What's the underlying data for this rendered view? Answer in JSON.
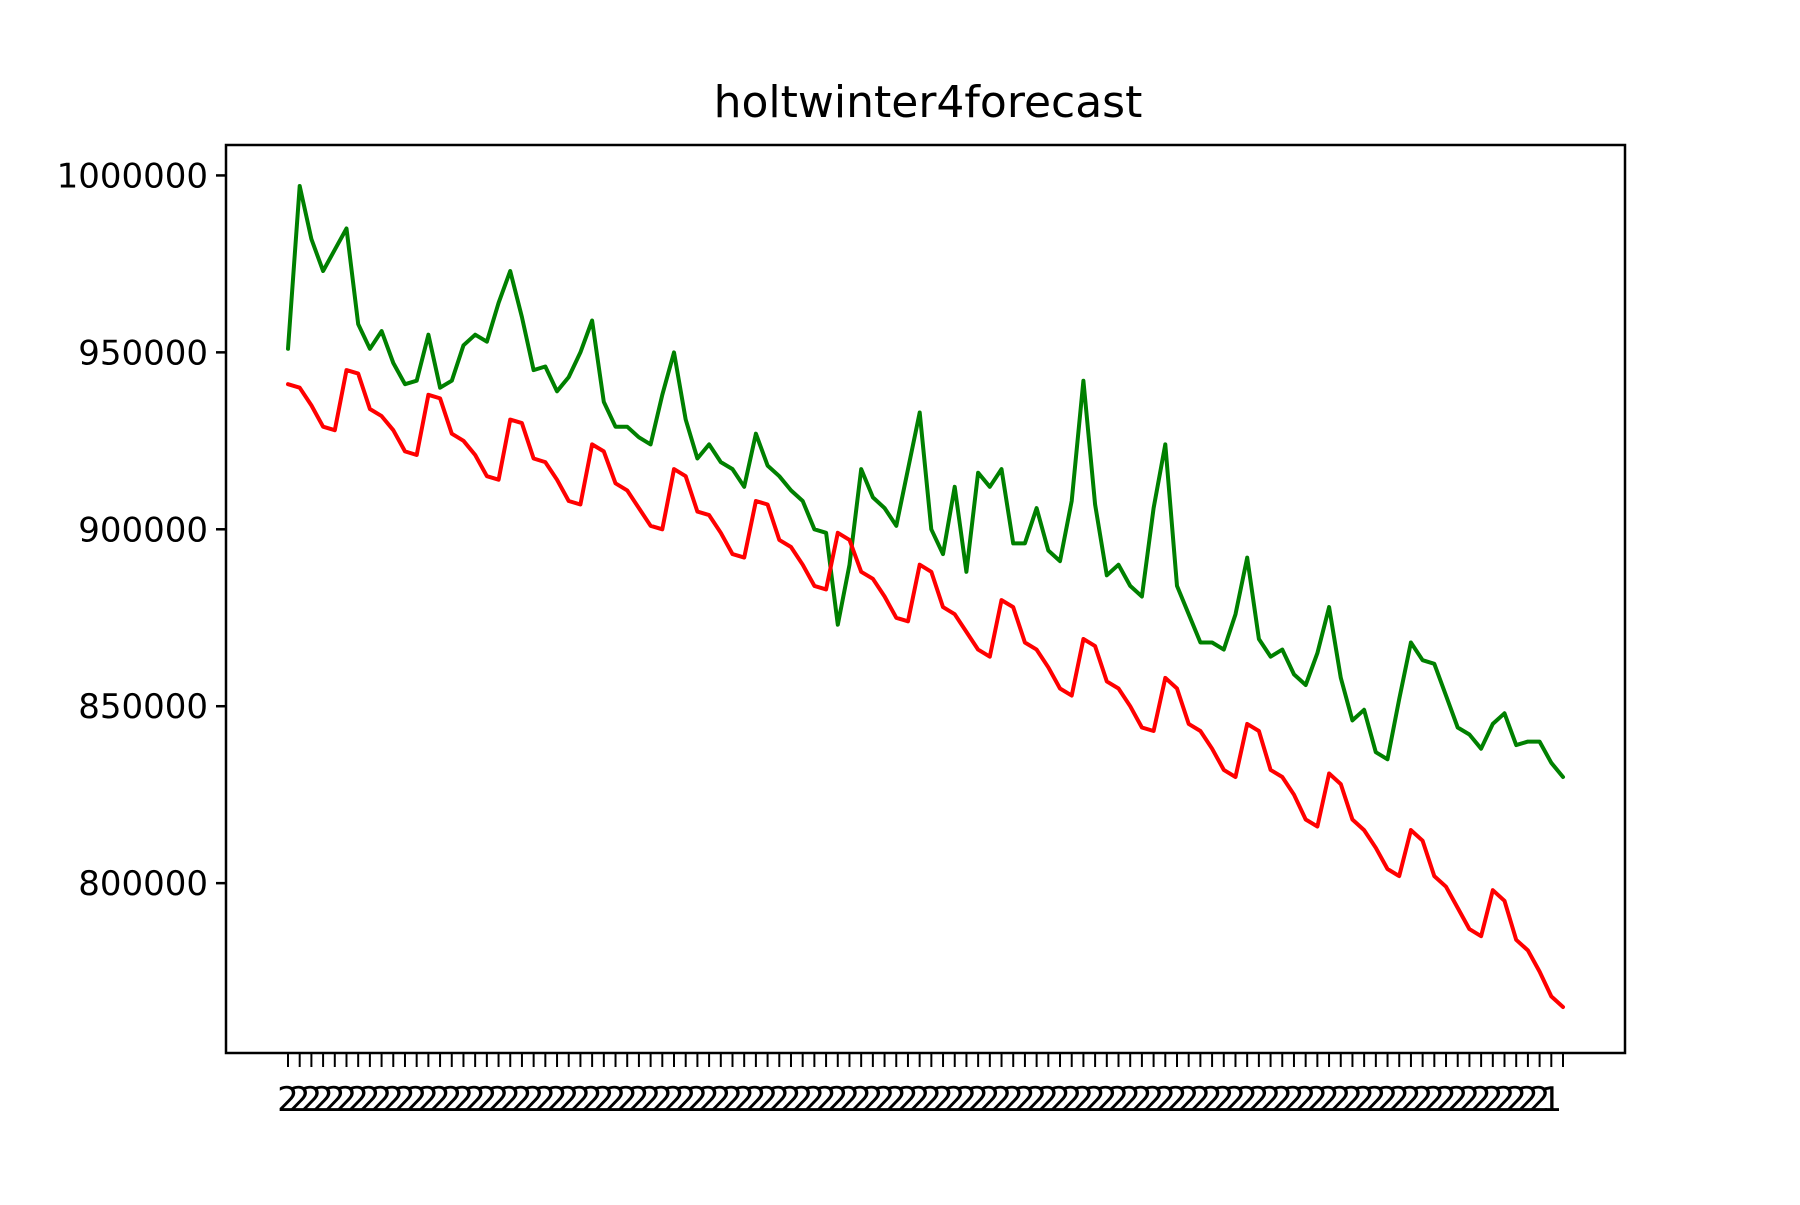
{
  "chart_data": {
    "type": "line",
    "title": "holtwinter4forecast",
    "xlabel": "",
    "ylabel": "",
    "ylim": [
      752000,
      1008600
    ],
    "yticks": [
      800000,
      850000,
      900000,
      950000,
      1000000
    ],
    "ytick_labels": [
      "800000",
      "850000",
      "900000",
      "950000",
      "1000000"
    ],
    "x_tick_labels_note": "x tick labels are overlapping and illegible",
    "x_tick_labels": [
      "2",
      "2",
      "2",
      "2",
      "2",
      "2",
      "2",
      "2",
      "2",
      "2",
      "2",
      "2",
      "2",
      "2",
      "2",
      "2",
      "2",
      "2",
      "2",
      "2",
      "2",
      "2",
      "2",
      "2",
      "2",
      "2",
      "2",
      "2",
      "2",
      "2",
      "2",
      "2",
      "2",
      "2",
      "2",
      "2",
      "2",
      "2",
      "2",
      "2",
      "2",
      "2",
      "2",
      "2",
      "2",
      "2",
      "2",
      "2",
      "2",
      "2",
      "2",
      "2",
      "2",
      "2",
      "2",
      "2",
      "2",
      "2",
      "2",
      "2",
      "2",
      "2",
      "2",
      "2",
      "2",
      "2",
      "2",
      "2",
      "2",
      "2",
      "2",
      "2",
      "2",
      "2",
      "2",
      "2",
      "2",
      "2",
      "2",
      "2",
      "2",
      "2",
      "2",
      "2",
      "2",
      "2",
      "2",
      "2",
      "2",
      "2",
      "2",
      "2",
      "2",
      "2",
      "2",
      "2",
      "2",
      "2",
      "2",
      "2",
      "2",
      "2",
      "2",
      "2",
      "2",
      "2",
      "2",
      "2",
      "1"
    ],
    "grid": false,
    "legend": "none",
    "series": [
      {
        "color": "#008000",
        "values": [
          951000,
          997000,
          982000,
          973000,
          979000,
          985000,
          958000,
          951000,
          956000,
          947000,
          941000,
          942000,
          955000,
          940000,
          942000,
          952000,
          955000,
          953000,
          964000,
          973000,
          960000,
          945000,
          946000,
          939000,
          943000,
          950000,
          959000,
          936000,
          929000,
          929000,
          926000,
          924000,
          938000,
          950000,
          931000,
          920000,
          924000,
          919000,
          917000,
          912000,
          927000,
          918000,
          915000,
          911000,
          908000,
          900000,
          899000,
          873000,
          890000,
          917000,
          909000,
          906000,
          901000,
          917000,
          933000,
          900000,
          893000,
          912000,
          888000,
          916000,
          912000,
          917000,
          896000,
          896000,
          906000,
          894000,
          891000,
          908000,
          942000,
          907000,
          887000,
          890000,
          884000,
          881000,
          906000,
          924000,
          884000,
          876000,
          868000,
          868000,
          866000,
          876000,
          892000,
          869000,
          864000,
          866000,
          859000,
          856000,
          865000,
          878000,
          858000,
          846000,
          849000,
          837000,
          835000,
          852000,
          868000,
          863000,
          862000,
          853000,
          844000,
          842000,
          838000,
          845000,
          848000,
          839000,
          840000,
          840000,
          834000,
          830000
        ]
      },
      {
        "color": "#ff0000",
        "values": [
          941000,
          940000,
          935000,
          929000,
          928000,
          945000,
          944000,
          934000,
          932000,
          928000,
          922000,
          921000,
          938000,
          937000,
          927000,
          925000,
          921000,
          915000,
          914000,
          931000,
          930000,
          920000,
          919000,
          914000,
          908000,
          907000,
          924000,
          922000,
          913000,
          911000,
          906000,
          901000,
          900000,
          917000,
          915000,
          905000,
          904000,
          899000,
          893000,
          892000,
          908000,
          907000,
          897000,
          895000,
          890000,
          884000,
          883000,
          899000,
          897000,
          888000,
          886000,
          881000,
          875000,
          874000,
          890000,
          888000,
          878000,
          876000,
          871000,
          866000,
          864000,
          880000,
          878000,
          868000,
          866000,
          861000,
          855000,
          853000,
          869000,
          867000,
          857000,
          855000,
          850000,
          844000,
          843000,
          858000,
          855000,
          845000,
          843000,
          838000,
          832000,
          830000,
          845000,
          843000,
          832000,
          830000,
          825000,
          818000,
          816000,
          831000,
          828000,
          818000,
          815000,
          810000,
          804000,
          802000,
          815000,
          812000,
          802000,
          799000,
          793000,
          787000,
          785000,
          798000,
          795000,
          784000,
          781000,
          775000,
          768000,
          765000
        ]
      }
    ]
  }
}
